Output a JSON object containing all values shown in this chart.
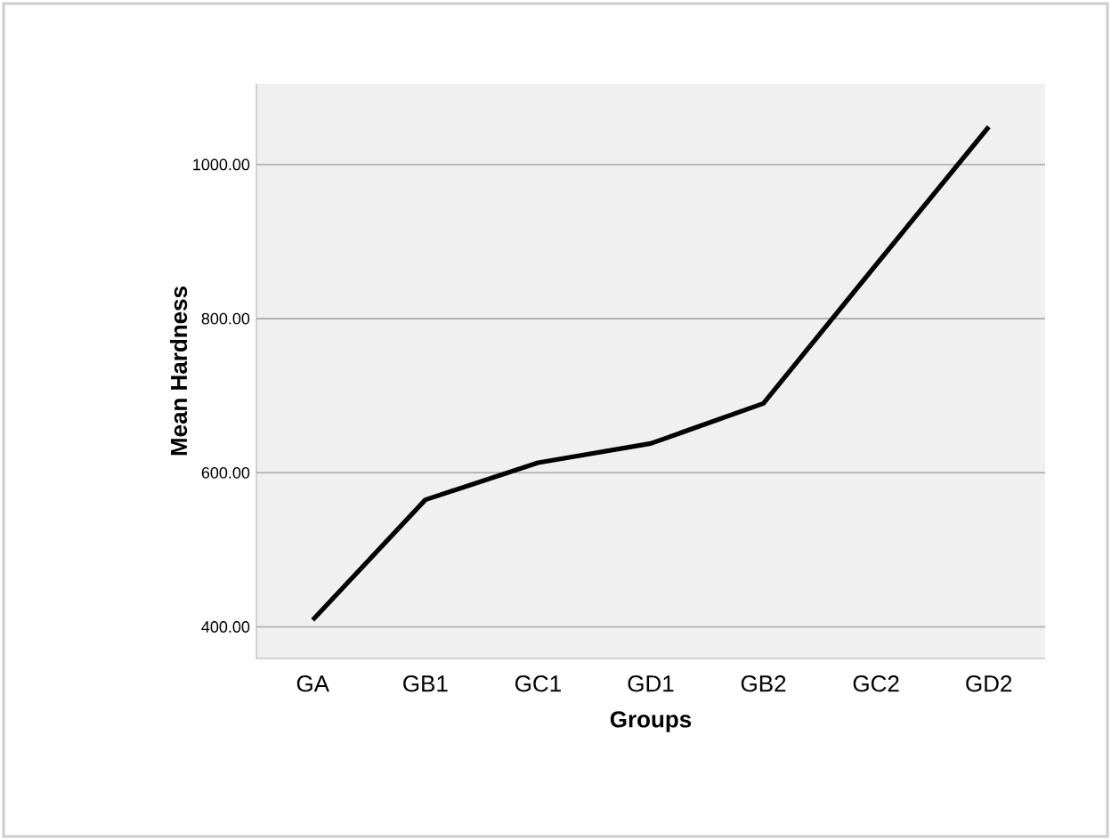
{
  "chart_data": {
    "type": "line",
    "xlabel": "Groups",
    "ylabel": "Mean Hardness",
    "categories": [
      "GA",
      "GB1",
      "GC1",
      "GD1",
      "GB2",
      "GC2",
      "GD2"
    ],
    "values": [
      409,
      565,
      613,
      638,
      690,
      870,
      1049
    ],
    "color": "#000000",
    "ylim": [
      359,
      1105
    ],
    "yticks": [
      {
        "value": 400,
        "label": "400.00"
      },
      {
        "value": 600,
        "label": "600.00"
      },
      {
        "value": 800,
        "label": "800.00"
      },
      {
        "value": 1000,
        "label": "1000.00"
      }
    ],
    "grid": "y",
    "marker": "none",
    "line_style": "solid"
  }
}
